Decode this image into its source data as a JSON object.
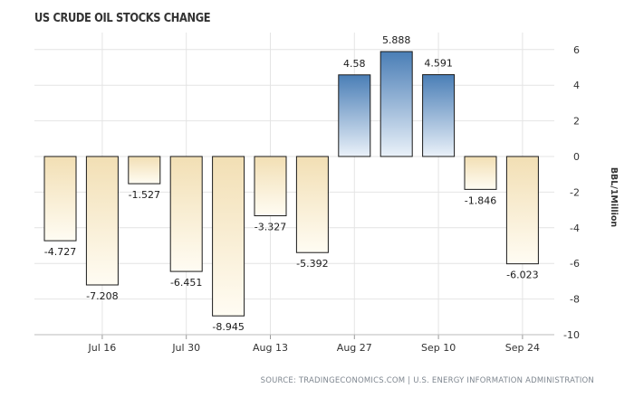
{
  "chart_data": {
    "type": "bar",
    "title": "US CRUDE OIL STOCKS CHANGE",
    "ylabel": "BBL/1Million",
    "source": "SOURCE: TRADINGECONOMICS.COM | U.S. ENERGY INFORMATION ADMINISTRATION",
    "ylim": [
      -10,
      6
    ],
    "yticks": [
      6,
      4,
      2,
      0,
      -2,
      -4,
      -6,
      -8,
      -10
    ],
    "x_tick_labels": [
      "Jul 16",
      "Jul 30",
      "Aug 13",
      "Aug 27",
      "Sep 10",
      "Sep 24"
    ],
    "values": [
      -4.727,
      -7.208,
      -1.527,
      -6.451,
      -8.945,
      -3.327,
      -5.392,
      4.58,
      5.888,
      4.591,
      -1.846,
      -6.023
    ],
    "data_labels": [
      "-4.727",
      "-7.208",
      "-1.527",
      "-6.451",
      "-8.945",
      "-3.327",
      "-5.392",
      "4.58",
      "5.888",
      "4.591",
      "-1.846",
      "-6.023"
    ],
    "grid": true,
    "colors": {
      "negative_top": "#f2dfb4",
      "negative_bottom": "#fffcf3",
      "positive_top": "#4a7eb6",
      "positive_bottom": "#eaf1f9",
      "bar_border": "#1a1a1a",
      "grid": "#e4e4e4"
    }
  }
}
